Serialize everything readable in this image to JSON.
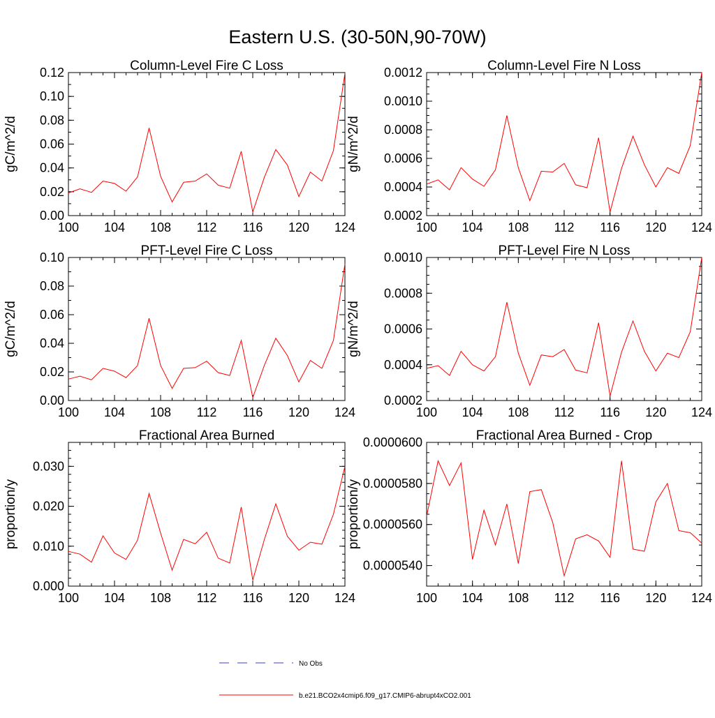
{
  "figure": {
    "title": "Eastern U.S. (30-50N,90-70W)"
  },
  "legend": {
    "entries": [
      {
        "label": "No Obs",
        "color": "#3b3bd6",
        "style": "dashed"
      },
      {
        "label": "b.e21.BCO2x4cmip6.f09_g17.CMIP6-abrupt4xCO2.001",
        "color": "#ff0000",
        "style": "solid"
      }
    ]
  },
  "chart_data": [
    {
      "type": "line",
      "title": "Column-Level Fire C Loss",
      "ylabel": "gC/m^2/d",
      "xlabel": "",
      "xlim": [
        100,
        124
      ],
      "ylim": [
        0,
        0.12
      ],
      "xticks": [
        "100",
        "104",
        "108",
        "112",
        "116",
        "120",
        "124"
      ],
      "yticks": [
        "0.00",
        "0.02",
        "0.04",
        "0.06",
        "0.08",
        "0.10",
        "0.12"
      ],
      "yminor": 0.01,
      "x": [
        100,
        101,
        102,
        103,
        104,
        105,
        106,
        107,
        108,
        109,
        110,
        111,
        112,
        113,
        114,
        115,
        116,
        117,
        118,
        119,
        120,
        121,
        122,
        123,
        124
      ],
      "series": [
        {
          "name": "b.e21.BCO2x4cmip6.f09_g17.CMIP6-abrupt4xCO2.001",
          "color": "#ff0000",
          "values": [
            0.019,
            0.0225,
            0.0195,
            0.029,
            0.027,
            0.0205,
            0.0325,
            0.0735,
            0.033,
            0.0115,
            0.028,
            0.029,
            0.035,
            0.0255,
            0.023,
            0.054,
            0.003,
            0.032,
            0.0555,
            0.0425,
            0.016,
            0.0365,
            0.029,
            0.0545,
            0.1195
          ]
        }
      ]
    },
    {
      "type": "line",
      "title": "Column-Level Fire N Loss",
      "ylabel": "gN/m^2/d",
      "xlabel": "",
      "xlim": [
        100,
        124
      ],
      "ylim": [
        0.0002,
        0.0012
      ],
      "xticks": [
        "100",
        "104",
        "108",
        "112",
        "116",
        "120",
        "124"
      ],
      "yticks": [
        "0.0002",
        "0.0004",
        "0.0006",
        "0.0008",
        "0.0010",
        "0.0012"
      ],
      "yminor": 5e-05,
      "x": [
        100,
        101,
        102,
        103,
        104,
        105,
        106,
        107,
        108,
        109,
        110,
        111,
        112,
        113,
        114,
        115,
        116,
        117,
        118,
        119,
        120,
        121,
        122,
        123,
        124
      ],
      "series": [
        {
          "name": "b.e21.BCO2x4cmip6.f09_g17.CMIP6-abrupt4xCO2.001",
          "color": "#ff0000",
          "values": [
            0.00042,
            0.00045,
            0.00038,
            0.000535,
            0.000455,
            0.000405,
            0.00052,
            0.0009,
            0.000535,
            0.000305,
            0.00051,
            0.000505,
            0.000565,
            0.000415,
            0.000395,
            0.000745,
            0.000225,
            0.00053,
            0.000755,
            0.000555,
            0.0004,
            0.000535,
            0.000495,
            0.00069,
            0.0012
          ]
        }
      ]
    },
    {
      "type": "line",
      "title": "PFT-Level Fire C Loss",
      "ylabel": "gC/m^2/d",
      "xlabel": "",
      "xlim": [
        100,
        124
      ],
      "ylim": [
        0,
        0.1
      ],
      "xticks": [
        "100",
        "104",
        "108",
        "112",
        "116",
        "120",
        "124"
      ],
      "yticks": [
        "0.00",
        "0.02",
        "0.04",
        "0.06",
        "0.08",
        "0.10"
      ],
      "yminor": 0.01,
      "x": [
        100,
        101,
        102,
        103,
        104,
        105,
        106,
        107,
        108,
        109,
        110,
        111,
        112,
        113,
        114,
        115,
        116,
        117,
        118,
        119,
        120,
        121,
        122,
        123,
        124
      ],
      "series": [
        {
          "name": "b.e21.BCO2x4cmip6.f09_g17.CMIP6-abrupt4xCO2.001",
          "color": "#ff0000",
          "values": [
            0.015,
            0.017,
            0.0145,
            0.0225,
            0.0205,
            0.016,
            0.0245,
            0.0575,
            0.0245,
            0.0085,
            0.0225,
            0.023,
            0.0275,
            0.0195,
            0.0175,
            0.042,
            0.002,
            0.0245,
            0.0435,
            0.0315,
            0.013,
            0.028,
            0.0225,
            0.042,
            0.0955
          ]
        }
      ]
    },
    {
      "type": "line",
      "title": "PFT-Level Fire N Loss",
      "ylabel": "gN/m^2/d",
      "xlabel": "",
      "xlim": [
        100,
        124
      ],
      "ylim": [
        0.0002,
        0.001
      ],
      "xticks": [
        "100",
        "104",
        "108",
        "112",
        "116",
        "120",
        "124"
      ],
      "yticks": [
        "0.0002",
        "0.0004",
        "0.0006",
        "0.0008",
        "0.0010"
      ],
      "yminor": 5e-05,
      "x": [
        100,
        101,
        102,
        103,
        104,
        105,
        106,
        107,
        108,
        109,
        110,
        111,
        112,
        113,
        114,
        115,
        116,
        117,
        118,
        119,
        120,
        121,
        122,
        123,
        124
      ],
      "series": [
        {
          "name": "b.e21.BCO2x4cmip6.f09_g17.CMIP6-abrupt4xCO2.001",
          "color": "#ff0000",
          "values": [
            0.00038,
            0.000395,
            0.00034,
            0.000475,
            0.0004,
            0.000365,
            0.000445,
            0.00075,
            0.000465,
            0.000285,
            0.000455,
            0.000445,
            0.000485,
            0.00037,
            0.000355,
            0.000635,
            0.000225,
            0.00047,
            0.000645,
            0.000475,
            0.000365,
            0.000465,
            0.00044,
            0.000585,
            0.001
          ]
        }
      ]
    },
    {
      "type": "line",
      "title": "Fractional Area Burned",
      "ylabel": "proportion/y",
      "xlabel": "",
      "xlim": [
        100,
        124
      ],
      "ylim": [
        0,
        0.036
      ],
      "xticks": [
        "100",
        "104",
        "108",
        "112",
        "116",
        "120",
        "124"
      ],
      "yticks": [
        "0.000",
        "0.010",
        "0.020",
        "0.030"
      ],
      "yminor": 0.002,
      "x": [
        100,
        101,
        102,
        103,
        104,
        105,
        106,
        107,
        108,
        109,
        110,
        111,
        112,
        113,
        114,
        115,
        116,
        117,
        118,
        119,
        120,
        121,
        122,
        123,
        124
      ],
      "series": [
        {
          "name": "b.e21.BCO2x4cmip6.f09_g17.CMIP6-abrupt4xCO2.001",
          "color": "#ff0000",
          "values": [
            0.0087,
            0.008,
            0.006,
            0.0126,
            0.0083,
            0.0067,
            0.0115,
            0.0232,
            0.0133,
            0.004,
            0.0117,
            0.0106,
            0.0135,
            0.007,
            0.0058,
            0.0198,
            0.0015,
            0.0116,
            0.0206,
            0.0125,
            0.009,
            0.011,
            0.0105,
            0.018,
            0.03
          ]
        }
      ]
    },
    {
      "type": "line",
      "title": "Fractional Area Burned - Crop",
      "ylabel": "proportion/y",
      "xlabel": "",
      "xlim": [
        100,
        124
      ],
      "ylim": [
        5.3e-05,
        6e-05
      ],
      "xticks": [
        "100",
        "104",
        "108",
        "112",
        "116",
        "120",
        "124"
      ],
      "yticks": [
        "0.0000540",
        "0.0000560",
        "0.0000580",
        "0.0000600"
      ],
      "yminor": 5e-07,
      "x": [
        100,
        101,
        102,
        103,
        104,
        105,
        106,
        107,
        108,
        109,
        110,
        111,
        112,
        113,
        114,
        115,
        116,
        117,
        118,
        119,
        120,
        121,
        122,
        123,
        124
      ],
      "series": [
        {
          "name": "b.e21.BCO2x4cmip6.f09_g17.CMIP6-abrupt4xCO2.001",
          "color": "#ff0000",
          "values": [
            5.64e-05,
            5.91e-05,
            5.79e-05,
            5.9e-05,
            5.43e-05,
            5.67e-05,
            5.5e-05,
            5.7e-05,
            5.41e-05,
            5.76e-05,
            5.77e-05,
            5.61e-05,
            5.35e-05,
            5.53e-05,
            5.55e-05,
            5.52e-05,
            5.44e-05,
            5.91e-05,
            5.48e-05,
            5.47e-05,
            5.71e-05,
            5.8e-05,
            5.57e-05,
            5.56e-05,
            5.51e-05
          ]
        }
      ]
    }
  ]
}
